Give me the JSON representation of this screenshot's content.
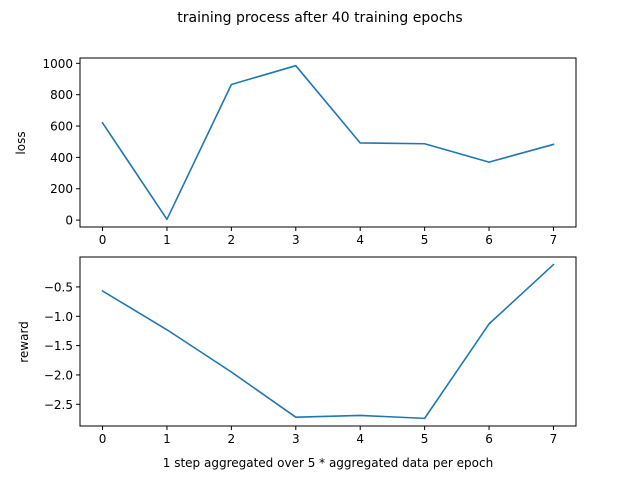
{
  "figure": {
    "title": "training process after 40 training epochs"
  },
  "chart_data": [
    {
      "type": "line",
      "title": "",
      "xlabel": "",
      "ylabel": "loss",
      "x": [
        0,
        1,
        2,
        3,
        4,
        5,
        6,
        7
      ],
      "series": [
        {
          "values": [
            620,
            5,
            865,
            985,
            492,
            487,
            370,
            483
          ],
          "color": "#1f77b4"
        }
      ],
      "xticks": [
        0,
        1,
        2,
        3,
        4,
        5,
        6,
        7
      ],
      "yticks": [
        0,
        200,
        400,
        600,
        800,
        1000
      ],
      "xlim": [
        -0.35,
        7.35
      ],
      "ylim": [
        -44,
        1034
      ],
      "grid": false,
      "legend": "none"
    },
    {
      "type": "line",
      "title": "",
      "xlabel": "1 step aggregated over 5 * aggregated data per epoch",
      "ylabel": "reward",
      "x": [
        0,
        1,
        2,
        3,
        4,
        5,
        6,
        7
      ],
      "series": [
        {
          "values": [
            -0.57,
            -1.23,
            -1.95,
            -2.72,
            -2.69,
            -2.74,
            -1.13,
            -0.12
          ],
          "color": "#1f77b4"
        }
      ],
      "xticks": [
        0,
        1,
        2,
        3,
        4,
        5,
        6,
        7
      ],
      "yticks": [
        -2.5,
        -2.0,
        -1.5,
        -1.0,
        -0.5
      ],
      "ytick_labels": [
        "−2.5",
        "−2.0",
        "−1.5",
        "−1.0",
        "−0.5"
      ],
      "xlim": [
        -0.35,
        7.35
      ],
      "ylim": [
        -2.87,
        0.01
      ],
      "grid": false,
      "legend": "none"
    }
  ]
}
